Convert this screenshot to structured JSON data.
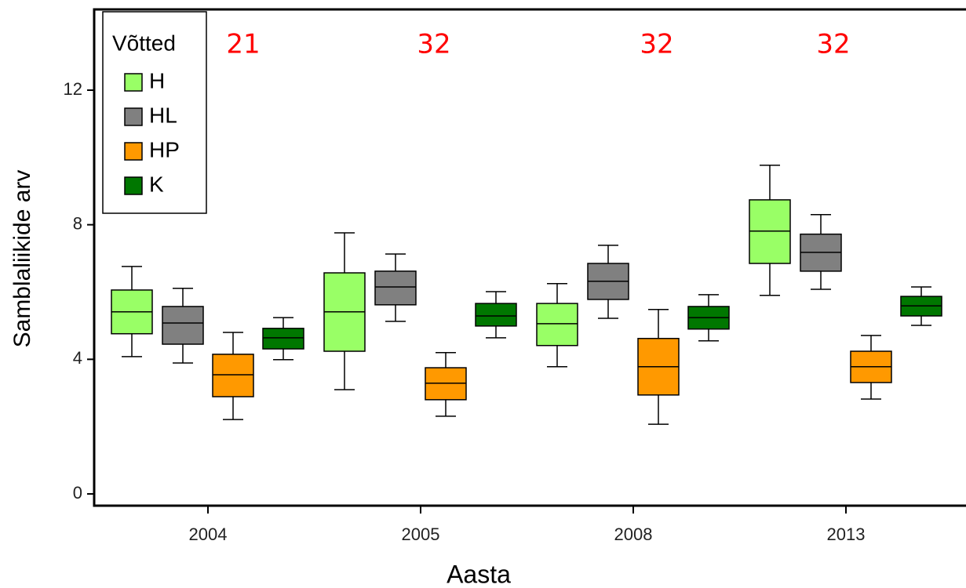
{
  "chart_data": {
    "type": "box",
    "x_label": "Aasta",
    "y_label": "Samblaliikide arv",
    "categories": [
      "2004",
      "2005",
      "2008",
      "2013"
    ],
    "ylim": [
      -0.35,
      14.4
    ],
    "yticks": [
      0,
      4,
      8,
      12
    ],
    "legend_title": "Võtted",
    "legend": "top-left",
    "annotations": [
      "21",
      "32",
      "32",
      "32"
    ],
    "series": [
      {
        "name": "H",
        "color": "#99ff66",
        "boxes": [
          {
            "low": 4.08,
            "q1": 4.76,
            "median": 5.41,
            "q3": 6.06,
            "high": 6.76
          },
          {
            "low": 3.1,
            "q1": 4.24,
            "median": 5.41,
            "q3": 6.57,
            "high": 7.76
          },
          {
            "low": 3.78,
            "q1": 4.41,
            "median": 5.06,
            "q3": 5.66,
            "high": 6.25
          },
          {
            "low": 5.9,
            "q1": 6.85,
            "median": 7.81,
            "q3": 8.74,
            "high": 9.77
          }
        ]
      },
      {
        "name": "HL",
        "color": "#808080",
        "boxes": [
          {
            "low": 3.89,
            "q1": 4.45,
            "median": 5.08,
            "q3": 5.57,
            "high": 6.11
          },
          {
            "low": 5.13,
            "q1": 5.62,
            "median": 6.15,
            "q3": 6.62,
            "high": 7.13
          },
          {
            "low": 5.22,
            "q1": 5.78,
            "median": 6.32,
            "q3": 6.85,
            "high": 7.39
          },
          {
            "low": 6.08,
            "q1": 6.62,
            "median": 7.18,
            "q3": 7.72,
            "high": 8.3
          }
        ]
      },
      {
        "name": "HP",
        "color": "#ff9900",
        "boxes": [
          {
            "low": 2.21,
            "q1": 2.89,
            "median": 3.54,
            "q3": 4.15,
            "high": 4.8
          },
          {
            "low": 2.31,
            "q1": 2.8,
            "median": 3.29,
            "q3": 3.75,
            "high": 4.2
          },
          {
            "low": 2.07,
            "q1": 2.94,
            "median": 3.78,
            "q3": 4.62,
            "high": 5.48
          },
          {
            "low": 2.82,
            "q1": 3.31,
            "median": 3.78,
            "q3": 4.24,
            "high": 4.71
          }
        ]
      },
      {
        "name": "K",
        "color": "#007700",
        "boxes": [
          {
            "low": 3.99,
            "q1": 4.31,
            "median": 4.64,
            "q3": 4.92,
            "high": 5.24
          },
          {
            "low": 4.64,
            "q1": 4.99,
            "median": 5.29,
            "q3": 5.66,
            "high": 6.01
          },
          {
            "low": 4.55,
            "q1": 4.9,
            "median": 5.24,
            "q3": 5.57,
            "high": 5.92
          },
          {
            "low": 5.01,
            "q1": 5.29,
            "median": 5.59,
            "q3": 5.87,
            "high": 6.15
          }
        ]
      }
    ]
  }
}
